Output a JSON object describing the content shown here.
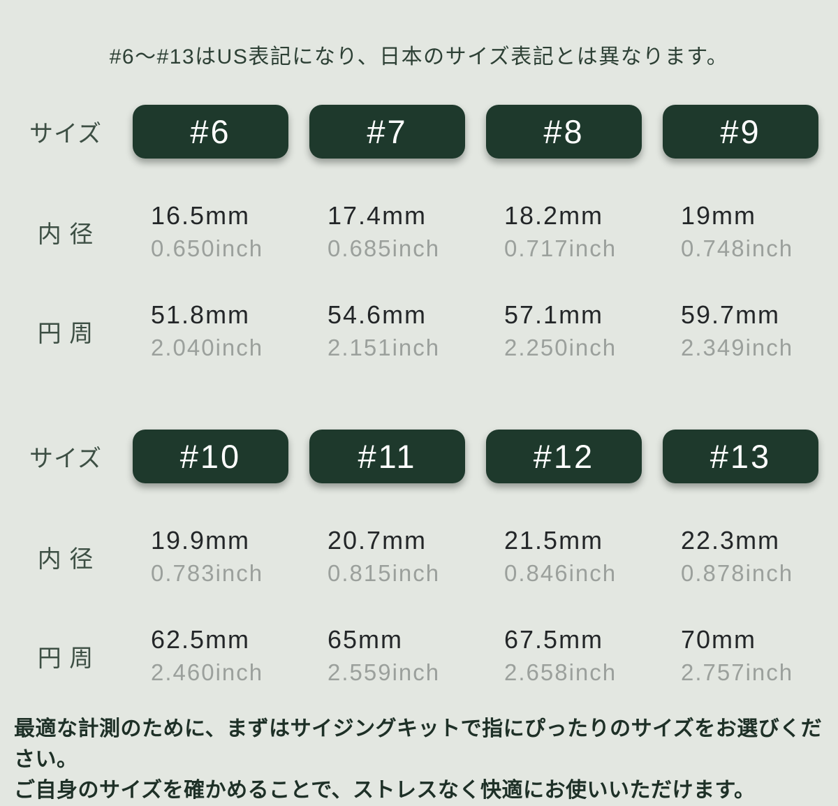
{
  "page": {
    "background_color": "#e3e7e1",
    "badge_color": "#1e392c",
    "badge_text_color": "#ffffff",
    "mm_text_color": "#232628",
    "inch_text_color": "#9ba09c",
    "accent_text_color": "#2d4035",
    "top_note": "#6～#13はUS表記になり、日本のサイズ表記とは異なります。",
    "footer_line1": "最適な計測のために、まずはサイジングキットで指にぴったりのサイズをお選びください。",
    "footer_line2": "ご自身のサイズを確かめることで、ストレスなく快適にお使いいただけます。"
  },
  "labels": {
    "size": "サイズ",
    "inner_diameter": "内 径",
    "circumference": "円 周"
  },
  "sections": [
    {
      "sizes": [
        {
          "tag": "#6",
          "inner_mm": "16.5mm",
          "inner_inch": "0.650inch",
          "circ_mm": "51.8mm",
          "circ_inch": "2.040inch"
        },
        {
          "tag": "#7",
          "inner_mm": "17.4mm",
          "inner_inch": "0.685inch",
          "circ_mm": "54.6mm",
          "circ_inch": "2.151inch"
        },
        {
          "tag": "#8",
          "inner_mm": "18.2mm",
          "inner_inch": "0.717inch",
          "circ_mm": "57.1mm",
          "circ_inch": "2.250inch"
        },
        {
          "tag": "#9",
          "inner_mm": "19mm",
          "inner_inch": "0.748inch",
          "circ_mm": "59.7mm",
          "circ_inch": "2.349inch"
        }
      ]
    },
    {
      "sizes": [
        {
          "tag": "#10",
          "inner_mm": "19.9mm",
          "inner_inch": "0.783inch",
          "circ_mm": "62.5mm",
          "circ_inch": "2.460inch"
        },
        {
          "tag": "#11",
          "inner_mm": "20.7mm",
          "inner_inch": "0.815inch",
          "circ_mm": "65mm",
          "circ_inch": "2.559inch"
        },
        {
          "tag": "#12",
          "inner_mm": "21.5mm",
          "inner_inch": "0.846inch",
          "circ_mm": "67.5mm",
          "circ_inch": "2.658inch"
        },
        {
          "tag": "#13",
          "inner_mm": "22.3mm",
          "inner_inch": "0.878inch",
          "circ_mm": "70mm",
          "circ_inch": "2.757inch"
        }
      ]
    }
  ],
  "chart_data": {
    "type": "table",
    "title": "#6～#13はUS表記になり、日本のサイズ表記とは異なります。",
    "columns": [
      "サイズ",
      "内径 (mm)",
      "内径 (inch)",
      "円周 (mm)",
      "円周 (inch)"
    ],
    "rows": [
      [
        "#6",
        16.5,
        0.65,
        51.8,
        2.04
      ],
      [
        "#7",
        17.4,
        0.685,
        54.6,
        2.151
      ],
      [
        "#8",
        18.2,
        0.717,
        57.1,
        2.25
      ],
      [
        "#9",
        19.0,
        0.748,
        59.7,
        2.349
      ],
      [
        "#10",
        19.9,
        0.783,
        62.5,
        2.46
      ],
      [
        "#11",
        20.7,
        0.815,
        65.0,
        2.559
      ],
      [
        "#12",
        21.5,
        0.846,
        67.5,
        2.658
      ],
      [
        "#13",
        22.3,
        0.878,
        70.0,
        2.757
      ]
    ],
    "units": {
      "mm_suffix": "mm",
      "inch_suffix": "inch"
    },
    "footnote": "最適な計測のために、まずはサイジングキットで指にぴったりのサイズをお選びください。ご自身のサイズを確かめることで、ストレスなく快適にお使いいただけます。"
  }
}
